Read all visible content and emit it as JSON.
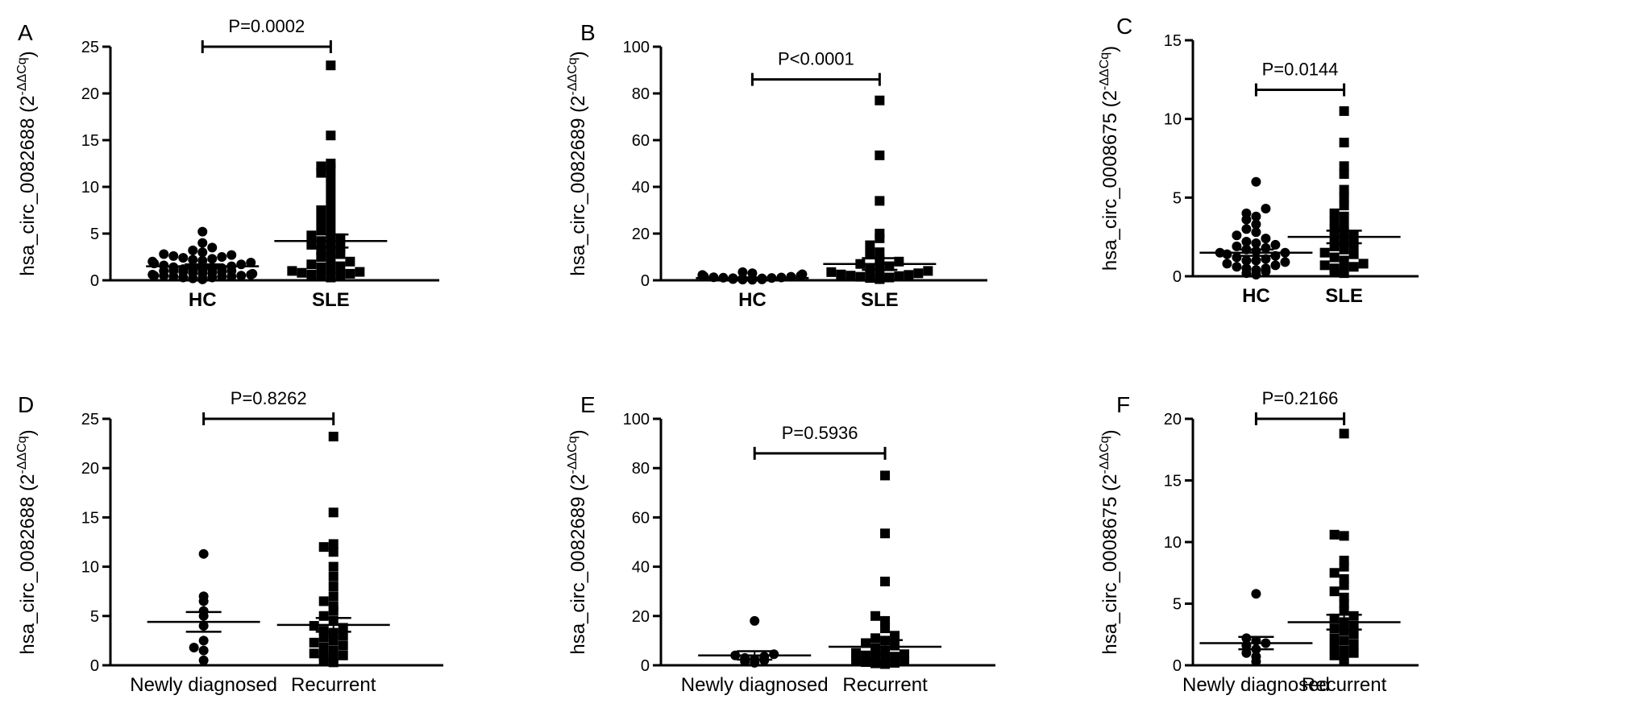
{
  "chart_data": [
    {
      "panel": "A",
      "type": "scatter",
      "ylabel_main": "hsa_circ_0082688 (2",
      "ylabel_sup": "-ΔΔCq",
      "ylabel_close": ")",
      "ylim": [
        0,
        25
      ],
      "yticks": [
        0,
        5,
        10,
        15,
        20,
        25
      ],
      "categories": [
        "HC",
        "SLE"
      ],
      "bold_categories": true,
      "p_value": "P=0.0002",
      "series": [
        {
          "marker": "circle",
          "mean": 1.5,
          "sem": 0.2,
          "values": [
            0.1,
            0.2,
            0.2,
            0.3,
            0.3,
            0.4,
            0.4,
            0.4,
            0.5,
            0.5,
            0.5,
            0.6,
            0.6,
            0.7,
            0.7,
            0.8,
            0.8,
            0.9,
            0.9,
            1.0,
            1.0,
            1.0,
            1.1,
            1.1,
            1.2,
            1.2,
            1.3,
            1.4,
            1.5,
            1.6,
            1.7,
            1.8,
            1.9,
            2.0,
            2.1,
            2.2,
            2.3,
            2.4,
            2.5,
            2.6,
            2.7,
            2.8,
            3.0,
            3.2,
            3.5,
            4.0,
            5.2
          ]
        },
        {
          "marker": "square",
          "mean": 4.2,
          "sem": 0.7,
          "values": [
            0.3,
            0.4,
            0.5,
            0.6,
            0.7,
            0.8,
            0.9,
            1.0,
            1.2,
            1.4,
            1.5,
            1.7,
            2.0,
            2.2,
            2.5,
            2.8,
            3.0,
            3.2,
            3.5,
            3.8,
            4.0,
            4.2,
            4.5,
            4.8,
            5.0,
            5.5,
            6.0,
            6.5,
            7.0,
            7.5,
            8.0,
            9.0,
            10.0,
            11.0,
            11.5,
            12.0,
            12.2,
            12.5,
            15.5,
            23.0
          ]
        }
      ]
    },
    {
      "panel": "B",
      "type": "scatter",
      "ylabel_main": "hsa_circ_0082689 (2",
      "ylabel_sup": "-ΔΔCq",
      "ylabel_close": ")",
      "ylim": [
        0,
        100
      ],
      "yticks": [
        0,
        20,
        40,
        60,
        80,
        100
      ],
      "categories": [
        "HC",
        "SLE"
      ],
      "bold_categories": true,
      "p_value": "P<0.0001",
      "series": [
        {
          "marker": "circle",
          "mean": 1.0,
          "sem": 0.2,
          "values": [
            0.2,
            0.3,
            0.4,
            0.5,
            0.6,
            0.7,
            0.8,
            0.9,
            1.0,
            1.1,
            1.2,
            1.3,
            1.5,
            1.7,
            2.0,
            2.3,
            2.6,
            3.0,
            3.5
          ]
        },
        {
          "marker": "square",
          "mean": 7.0,
          "sem": 2.5,
          "values": [
            0.5,
            0.7,
            1.0,
            1.2,
            1.5,
            1.8,
            2.0,
            2.3,
            2.5,
            3.0,
            3.5,
            4.0,
            4.5,
            5.0,
            6.0,
            7.0,
            8.0,
            9.0,
            11.0,
            12.0,
            15.0,
            18.0,
            20.0,
            34.0,
            53.5,
            77.0
          ]
        }
      ]
    },
    {
      "panel": "C",
      "type": "scatter",
      "ylabel_main": "hsa_circ_0008675 (2",
      "ylabel_sup": "-ΔΔCq",
      "ylabel_close": ")",
      "ylim": [
        0,
        15
      ],
      "yticks": [
        0,
        5,
        10,
        15
      ],
      "categories": [
        "HC",
        "SLE"
      ],
      "bold_categories": true,
      "p_value": "P=0.0144",
      "series": [
        {
          "marker": "circle",
          "mean": 1.5,
          "sem": 0.2,
          "values": [
            0.1,
            0.2,
            0.3,
            0.4,
            0.5,
            0.5,
            0.6,
            0.7,
            0.8,
            0.9,
            1.0,
            1.0,
            1.1,
            1.2,
            1.3,
            1.4,
            1.5,
            1.5,
            1.6,
            1.7,
            1.8,
            1.9,
            2.0,
            2.1,
            2.2,
            2.4,
            2.6,
            2.8,
            3.0,
            3.3,
            3.6,
            3.8,
            4.0,
            4.3,
            6.0
          ]
        },
        {
          "marker": "square",
          "mean": 2.5,
          "sem": 0.4,
          "values": [
            0.2,
            0.3,
            0.4,
            0.5,
            0.6,
            0.7,
            0.8,
            1.0,
            1.2,
            1.4,
            1.5,
            1.7,
            1.9,
            2.0,
            2.2,
            2.4,
            2.6,
            2.8,
            3.0,
            3.2,
            3.5,
            3.8,
            4.0,
            4.5,
            5.0,
            5.5,
            6.5,
            7.0,
            8.5,
            10.5
          ]
        }
      ]
    },
    {
      "panel": "D",
      "type": "scatter",
      "ylabel_main": "hsa_circ_0082688 (2",
      "ylabel_sup": "-ΔΔCq",
      "ylabel_close": ")",
      "ylim": [
        0,
        25
      ],
      "yticks": [
        0,
        5,
        10,
        15,
        20,
        25
      ],
      "categories": [
        "Newly diagnosed",
        "Recurrent"
      ],
      "bold_categories": false,
      "p_value": "P=0.8262",
      "series": [
        {
          "marker": "circle",
          "mean": 4.4,
          "sem": 1.0,
          "values": [
            0.5,
            1.5,
            1.8,
            2.5,
            4.0,
            5.0,
            5.5,
            6.5,
            7.0,
            11.3
          ]
        },
        {
          "marker": "square",
          "mean": 4.1,
          "sem": 0.7,
          "values": [
            0.3,
            0.5,
            0.7,
            0.9,
            1.0,
            1.2,
            1.5,
            1.8,
            2.0,
            2.3,
            2.5,
            2.8,
            3.0,
            3.3,
            3.5,
            3.8,
            4.0,
            4.5,
            5.0,
            5.5,
            6.0,
            6.5,
            7.0,
            8.0,
            9.0,
            10.0,
            11.5,
            12.0,
            12.3,
            15.5,
            23.2
          ]
        }
      ]
    },
    {
      "panel": "E",
      "type": "scatter",
      "ylabel_main": "hsa_circ_0082689 (2",
      "ylabel_sup": "-ΔΔCq",
      "ylabel_close": ")",
      "ylim": [
        0,
        100
      ],
      "yticks": [
        0,
        20,
        40,
        60,
        80,
        100
      ],
      "categories": [
        "Newly diagnosed",
        "Recurrent"
      ],
      "bold_categories": false,
      "p_value": "P=0.5936",
      "series": [
        {
          "marker": "circle",
          "mean": 4.0,
          "sem": 1.7,
          "values": [
            1.0,
            1.5,
            2.0,
            2.5,
            3.0,
            3.5,
            4.0,
            4.5,
            18.0
          ]
        },
        {
          "marker": "square",
          "mean": 7.5,
          "sem": 2.7,
          "values": [
            0.5,
            0.8,
            1.0,
            1.3,
            1.5,
            2.0,
            2.5,
            3.0,
            3.5,
            4.0,
            4.5,
            5.0,
            6.0,
            7.0,
            8.0,
            9.0,
            10.0,
            11.0,
            12.0,
            15.0,
            18.0,
            20.0,
            34.0,
            53.5,
            77.0
          ]
        }
      ]
    },
    {
      "panel": "F",
      "type": "scatter",
      "ylabel_main": "hsa_circ_0008675 (2",
      "ylabel_sup": "-ΔΔCq",
      "ylabel_close": ")",
      "ylim": [
        0,
        20
      ],
      "yticks": [
        0,
        5,
        10,
        15,
        20
      ],
      "categories": [
        "Newly diagnosed",
        "Recurrent"
      ],
      "bold_categories": false,
      "p_value": "P=0.2166",
      "series": [
        {
          "marker": "circle",
          "mean": 1.8,
          "sem": 0.5,
          "values": [
            0.3,
            0.7,
            1.0,
            1.3,
            1.6,
            1.8,
            2.0,
            2.2,
            5.8
          ]
        },
        {
          "marker": "square",
          "mean": 3.5,
          "sem": 0.6,
          "values": [
            0.3,
            0.5,
            0.8,
            1.0,
            1.2,
            1.5,
            1.7,
            2.0,
            2.2,
            2.5,
            2.8,
            3.0,
            3.2,
            3.5,
            3.8,
            4.0,
            4.5,
            5.0,
            5.5,
            6.0,
            6.5,
            7.0,
            7.5,
            8.0,
            8.5,
            10.5,
            10.6,
            18.8
          ]
        }
      ]
    }
  ]
}
